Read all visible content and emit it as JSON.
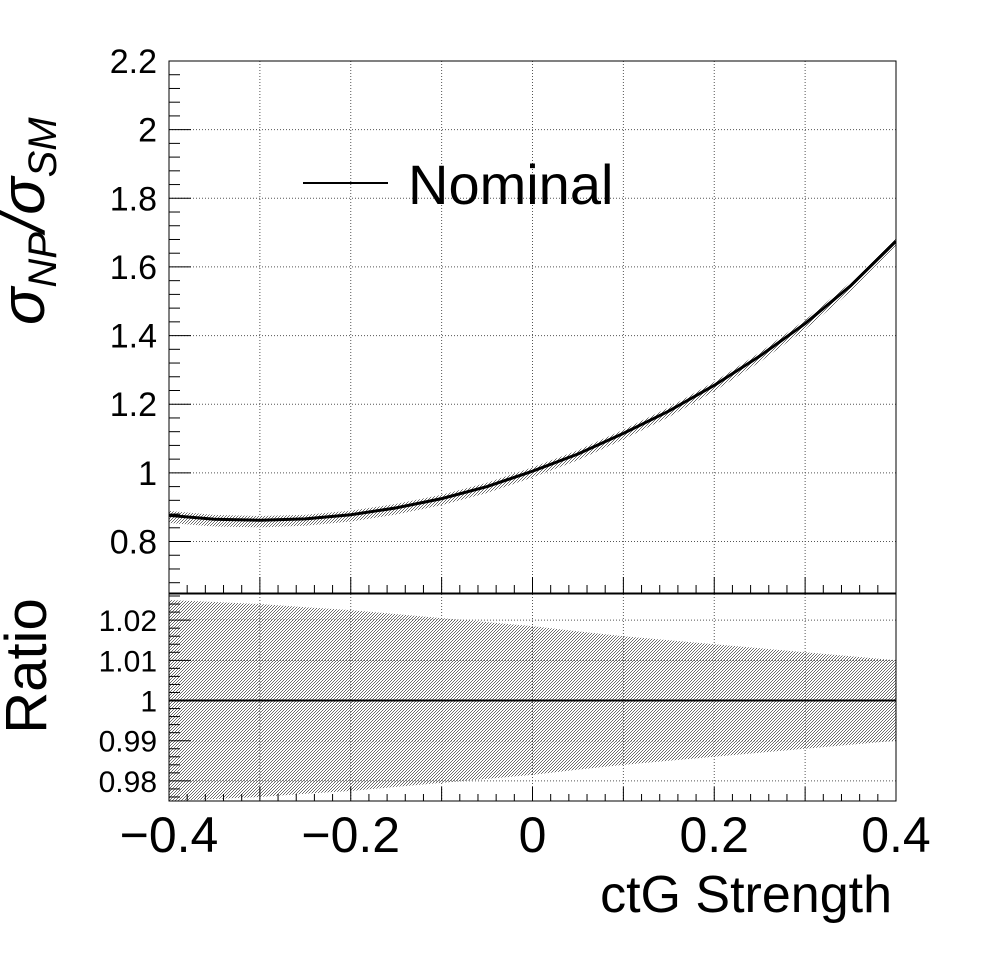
{
  "chart_data": {
    "type": "line",
    "top_panel": {
      "ylabel_main": "σ",
      "ylabel_sub1": "NP",
      "ylabel_slash": "/σ",
      "ylabel_sub2": "SM",
      "ylim": [
        0.65,
        2.2
      ],
      "yticks": [
        "0.8",
        "1",
        "1.2",
        "1.4",
        "1.6",
        "1.8",
        "2",
        "2.2"
      ],
      "ytick_values": [
        0.8,
        1.0,
        1.2,
        1.4,
        1.6,
        1.8,
        2.0,
        2.2
      ],
      "grid": true,
      "legend": {
        "placement": "top",
        "entries": [
          "Nominal"
        ]
      },
      "series": [
        {
          "name": "Nominal",
          "x": [
            -0.4,
            -0.35,
            -0.3,
            -0.25,
            -0.2,
            -0.15,
            -0.1,
            -0.05,
            0.0,
            0.05,
            0.1,
            0.15,
            0.2,
            0.25,
            0.3,
            0.35,
            0.4
          ],
          "y": [
            0.876,
            0.865,
            0.862,
            0.866,
            0.878,
            0.898,
            0.925,
            0.96,
            1.005,
            1.055,
            1.115,
            1.18,
            1.255,
            1.34,
            1.435,
            1.545,
            1.675
          ],
          "band_rel": [
            0.025,
            0.0245,
            0.024,
            0.0232,
            0.0225,
            0.0215,
            0.0205,
            0.0195,
            0.0185,
            0.0172,
            0.016,
            0.015,
            0.014,
            0.013,
            0.012,
            0.011,
            0.01
          ]
        }
      ]
    },
    "bottom_panel": {
      "ylabel": "Ratio",
      "ylim": [
        0.975,
        1.0265
      ],
      "yticks": [
        "0.98",
        "0.99",
        "1",
        "1.01",
        "1.02"
      ],
      "ytick_values": [
        0.98,
        0.99,
        1.0,
        1.01,
        1.02
      ],
      "grid": true,
      "ratio_line": 1.0
    },
    "x_axis": {
      "xlabel": "ctG Strength",
      "xlim": [
        -0.4,
        0.4
      ],
      "xticks": [
        "−0.4",
        "−0.2",
        "0",
        "0.2",
        "0.4"
      ],
      "xtick_values": [
        -0.4,
        -0.2,
        0.0,
        0.2,
        0.4
      ]
    },
    "colors": {
      "line": "#000000",
      "band": "#9a9a9a",
      "grid": "#555555"
    }
  }
}
